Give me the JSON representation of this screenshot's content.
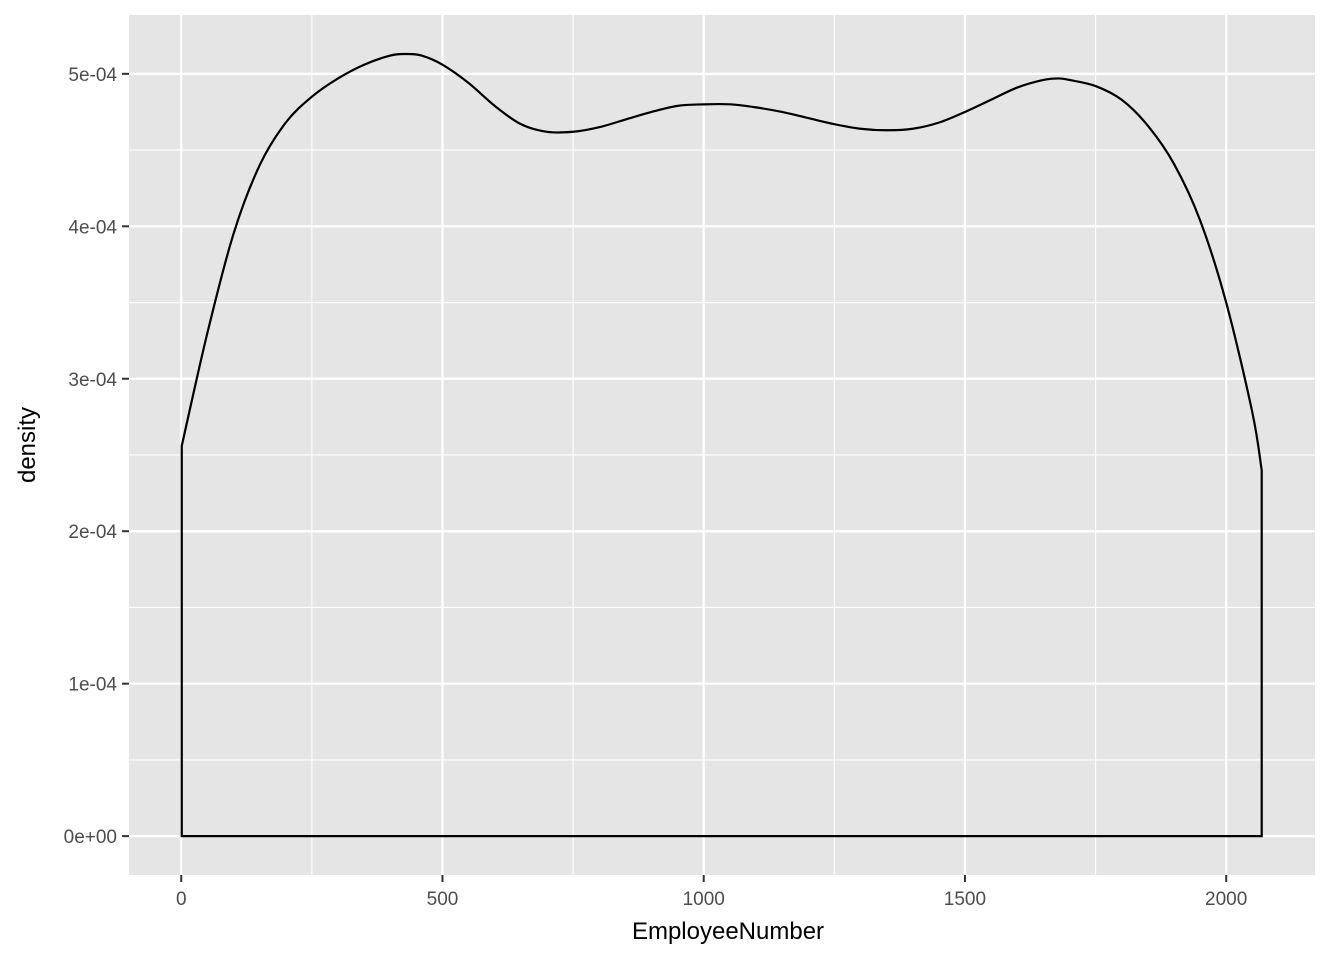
{
  "chart_data": {
    "type": "area",
    "title": "",
    "xlabel": "EmployeeNumber",
    "ylabel": "density",
    "xlim": [
      -100,
      2170
    ],
    "ylim": [
      -2.55e-05,
      0.0005386
    ],
    "x_ticks": [
      0,
      500,
      1000,
      1500,
      2000
    ],
    "x_tick_labels": [
      "0",
      "500",
      "1000",
      "1500",
      "2000"
    ],
    "y_ticks": [
      0,
      0.0001,
      0.0002,
      0.0003,
      0.0004,
      0.0005
    ],
    "y_tick_labels": [
      "0e+00",
      "1e-04",
      "2e-04",
      "3e-04",
      "4e-04",
      "5e-04"
    ],
    "grid": true,
    "colors": {
      "panel_background": "#e5e5e5",
      "grid": "#ffffff",
      "line": "#000000",
      "fill": "none"
    },
    "series": [
      {
        "x": [
          1,
          50,
          100,
          150,
          200,
          250,
          300,
          350,
          400,
          430,
          460,
          500,
          550,
          600,
          650,
          700,
          750,
          800,
          850,
          900,
          950,
          1000,
          1050,
          1100,
          1150,
          1200,
          1250,
          1300,
          1350,
          1400,
          1450,
          1500,
          1550,
          1600,
          1650,
          1680,
          1700,
          1750,
          1800,
          1850,
          1900,
          1950,
          2000,
          2050,
          2068
        ],
        "y": [
          0.000256,
          0.00033,
          0.000395,
          0.00044,
          0.000468,
          0.000485,
          0.000497,
          0.000506,
          0.000512,
          0.000513,
          0.000512,
          0.000506,
          0.000494,
          0.000479,
          0.000467,
          0.000462,
          0.000462,
          0.000465,
          0.00047,
          0.000475,
          0.000479,
          0.00048,
          0.00048,
          0.000478,
          0.000475,
          0.000471,
          0.000467,
          0.000464,
          0.000463,
          0.000464,
          0.000468,
          0.000475,
          0.000483,
          0.000491,
          0.000496,
          0.000497,
          0.000496,
          0.000492,
          0.000483,
          0.000466,
          0.000441,
          0.000404,
          0.00035,
          0.000278,
          0.00024
        ]
      }
    ]
  }
}
